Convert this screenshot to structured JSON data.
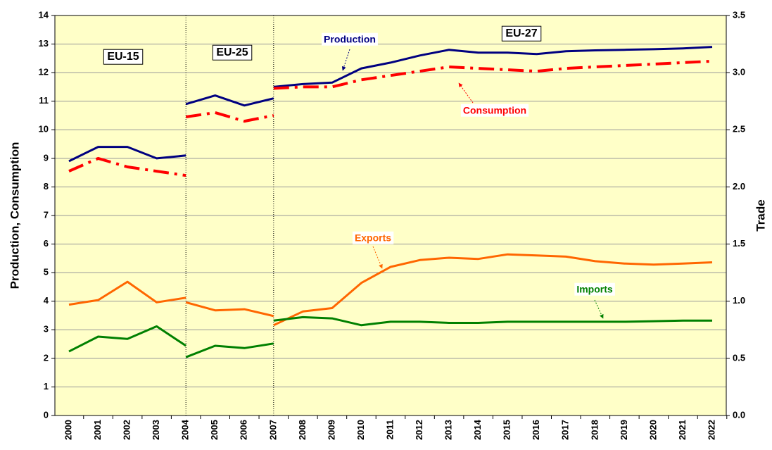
{
  "chart_data": {
    "type": "line",
    "ylabel": "Production, Consumption",
    "y2label": "Trade",
    "ylim": [
      0,
      14
    ],
    "yticks": [
      0,
      1,
      2,
      3,
      4,
      5,
      6,
      7,
      8,
      9,
      10,
      11,
      12,
      13,
      14
    ],
    "y2lim": [
      0,
      3.5
    ],
    "y2ticks": [
      {
        "value": 0,
        "label": "0.0"
      },
      0.5,
      {
        "value": 1,
        "label": "1.0"
      },
      1.5,
      {
        "value": 2,
        "label": "2.0"
      },
      2.5,
      {
        "value": 3,
        "label": "3.0"
      },
      3.5
    ],
    "xlim": [
      2000,
      2022
    ],
    "xticks": [
      2000,
      2001,
      2002,
      2003,
      2004,
      2005,
      2006,
      2007,
      2008,
      2009,
      2010,
      2011,
      2012,
      2013,
      2014,
      2015,
      2016,
      2017,
      2018,
      2019,
      2020,
      2021,
      2022
    ],
    "grid": true,
    "annotations": [
      "EU-15",
      "EU-25",
      "EU-27"
    ],
    "series": [
      {
        "name": "Production",
        "color": "#000080",
        "axis": "y",
        "dash": "solid",
        "segments": [
          {
            "x": [
              2000,
              2001,
              2002,
              2003,
              2004
            ],
            "values": [
              8.9,
              9.4,
              9.4,
              9.0,
              9.1
            ]
          },
          {
            "x": [
              2004,
              2005,
              2006,
              2007
            ],
            "values": [
              10.9,
              11.2,
              10.85,
              11.1
            ]
          },
          {
            "x": [
              2007,
              2008,
              2009,
              2010,
              2011,
              2012,
              2013,
              2014,
              2015,
              2016,
              2017,
              2018,
              2019,
              2020,
              2021,
              2022
            ],
            "values": [
              11.5,
              11.6,
              11.65,
              12.15,
              12.35,
              12.6,
              12.8,
              12.7,
              12.7,
              12.65,
              12.75,
              12.78,
              12.8,
              12.82,
              12.85,
              12.9
            ]
          }
        ]
      },
      {
        "name": "Consumption",
        "color": "#ff0000",
        "axis": "y",
        "dash": "dash-dot",
        "segments": [
          {
            "x": [
              2000,
              2001,
              2002,
              2003,
              2004
            ],
            "values": [
              8.55,
              9.0,
              8.7,
              8.55,
              8.4
            ]
          },
          {
            "x": [
              2004,
              2005,
              2006,
              2007
            ],
            "values": [
              10.45,
              10.6,
              10.3,
              10.5
            ]
          },
          {
            "x": [
              2007,
              2008,
              2009,
              2010,
              2011,
              2012,
              2013,
              2014,
              2015,
              2016,
              2017,
              2018,
              2019,
              2020,
              2021,
              2022
            ],
            "values": [
              11.45,
              11.5,
              11.5,
              11.75,
              11.9,
              12.05,
              12.2,
              12.15,
              12.1,
              12.05,
              12.15,
              12.2,
              12.25,
              12.3,
              12.35,
              12.4
            ]
          }
        ]
      },
      {
        "name": "Exports",
        "color": "#ff6600",
        "axis": "y2",
        "dash": "solid",
        "segments": [
          {
            "x": [
              2000,
              2001,
              2002,
              2003,
              2004
            ],
            "values": [
              0.97,
              1.01,
              1.17,
              0.99,
              1.03
            ]
          },
          {
            "x": [
              2004,
              2005,
              2006,
              2007
            ],
            "values": [
              0.99,
              0.92,
              0.93,
              0.87
            ]
          },
          {
            "x": [
              2007,
              2008,
              2009,
              2010,
              2011,
              2012,
              2013,
              2014,
              2015,
              2016,
              2017,
              2018,
              2019,
              2020,
              2021,
              2022
            ],
            "values": [
              0.79,
              0.91,
              0.94,
              1.16,
              1.3,
              1.36,
              1.38,
              1.37,
              1.41,
              1.4,
              1.39,
              1.35,
              1.33,
              1.32,
              1.33,
              1.34
            ]
          }
        ]
      },
      {
        "name": "Imports",
        "color": "#008000",
        "axis": "y2",
        "dash": "solid",
        "segments": [
          {
            "x": [
              2000,
              2001,
              2002,
              2003,
              2004
            ],
            "values": [
              0.56,
              0.69,
              0.67,
              0.78,
              0.61
            ]
          },
          {
            "x": [
              2004,
              2005,
              2006,
              2007
            ],
            "values": [
              0.51,
              0.61,
              0.59,
              0.63
            ]
          },
          {
            "x": [
              2007,
              2008,
              2009,
              2010,
              2011,
              2012,
              2013,
              2014,
              2015,
              2016,
              2017,
              2018,
              2019,
              2020,
              2021,
              2022
            ],
            "values": [
              0.83,
              0.86,
              0.85,
              0.79,
              0.82,
              0.82,
              0.81,
              0.81,
              0.82,
              0.82,
              0.82,
              0.82,
              0.82,
              0.825,
              0.83,
              0.83
            ]
          }
        ]
      }
    ]
  }
}
